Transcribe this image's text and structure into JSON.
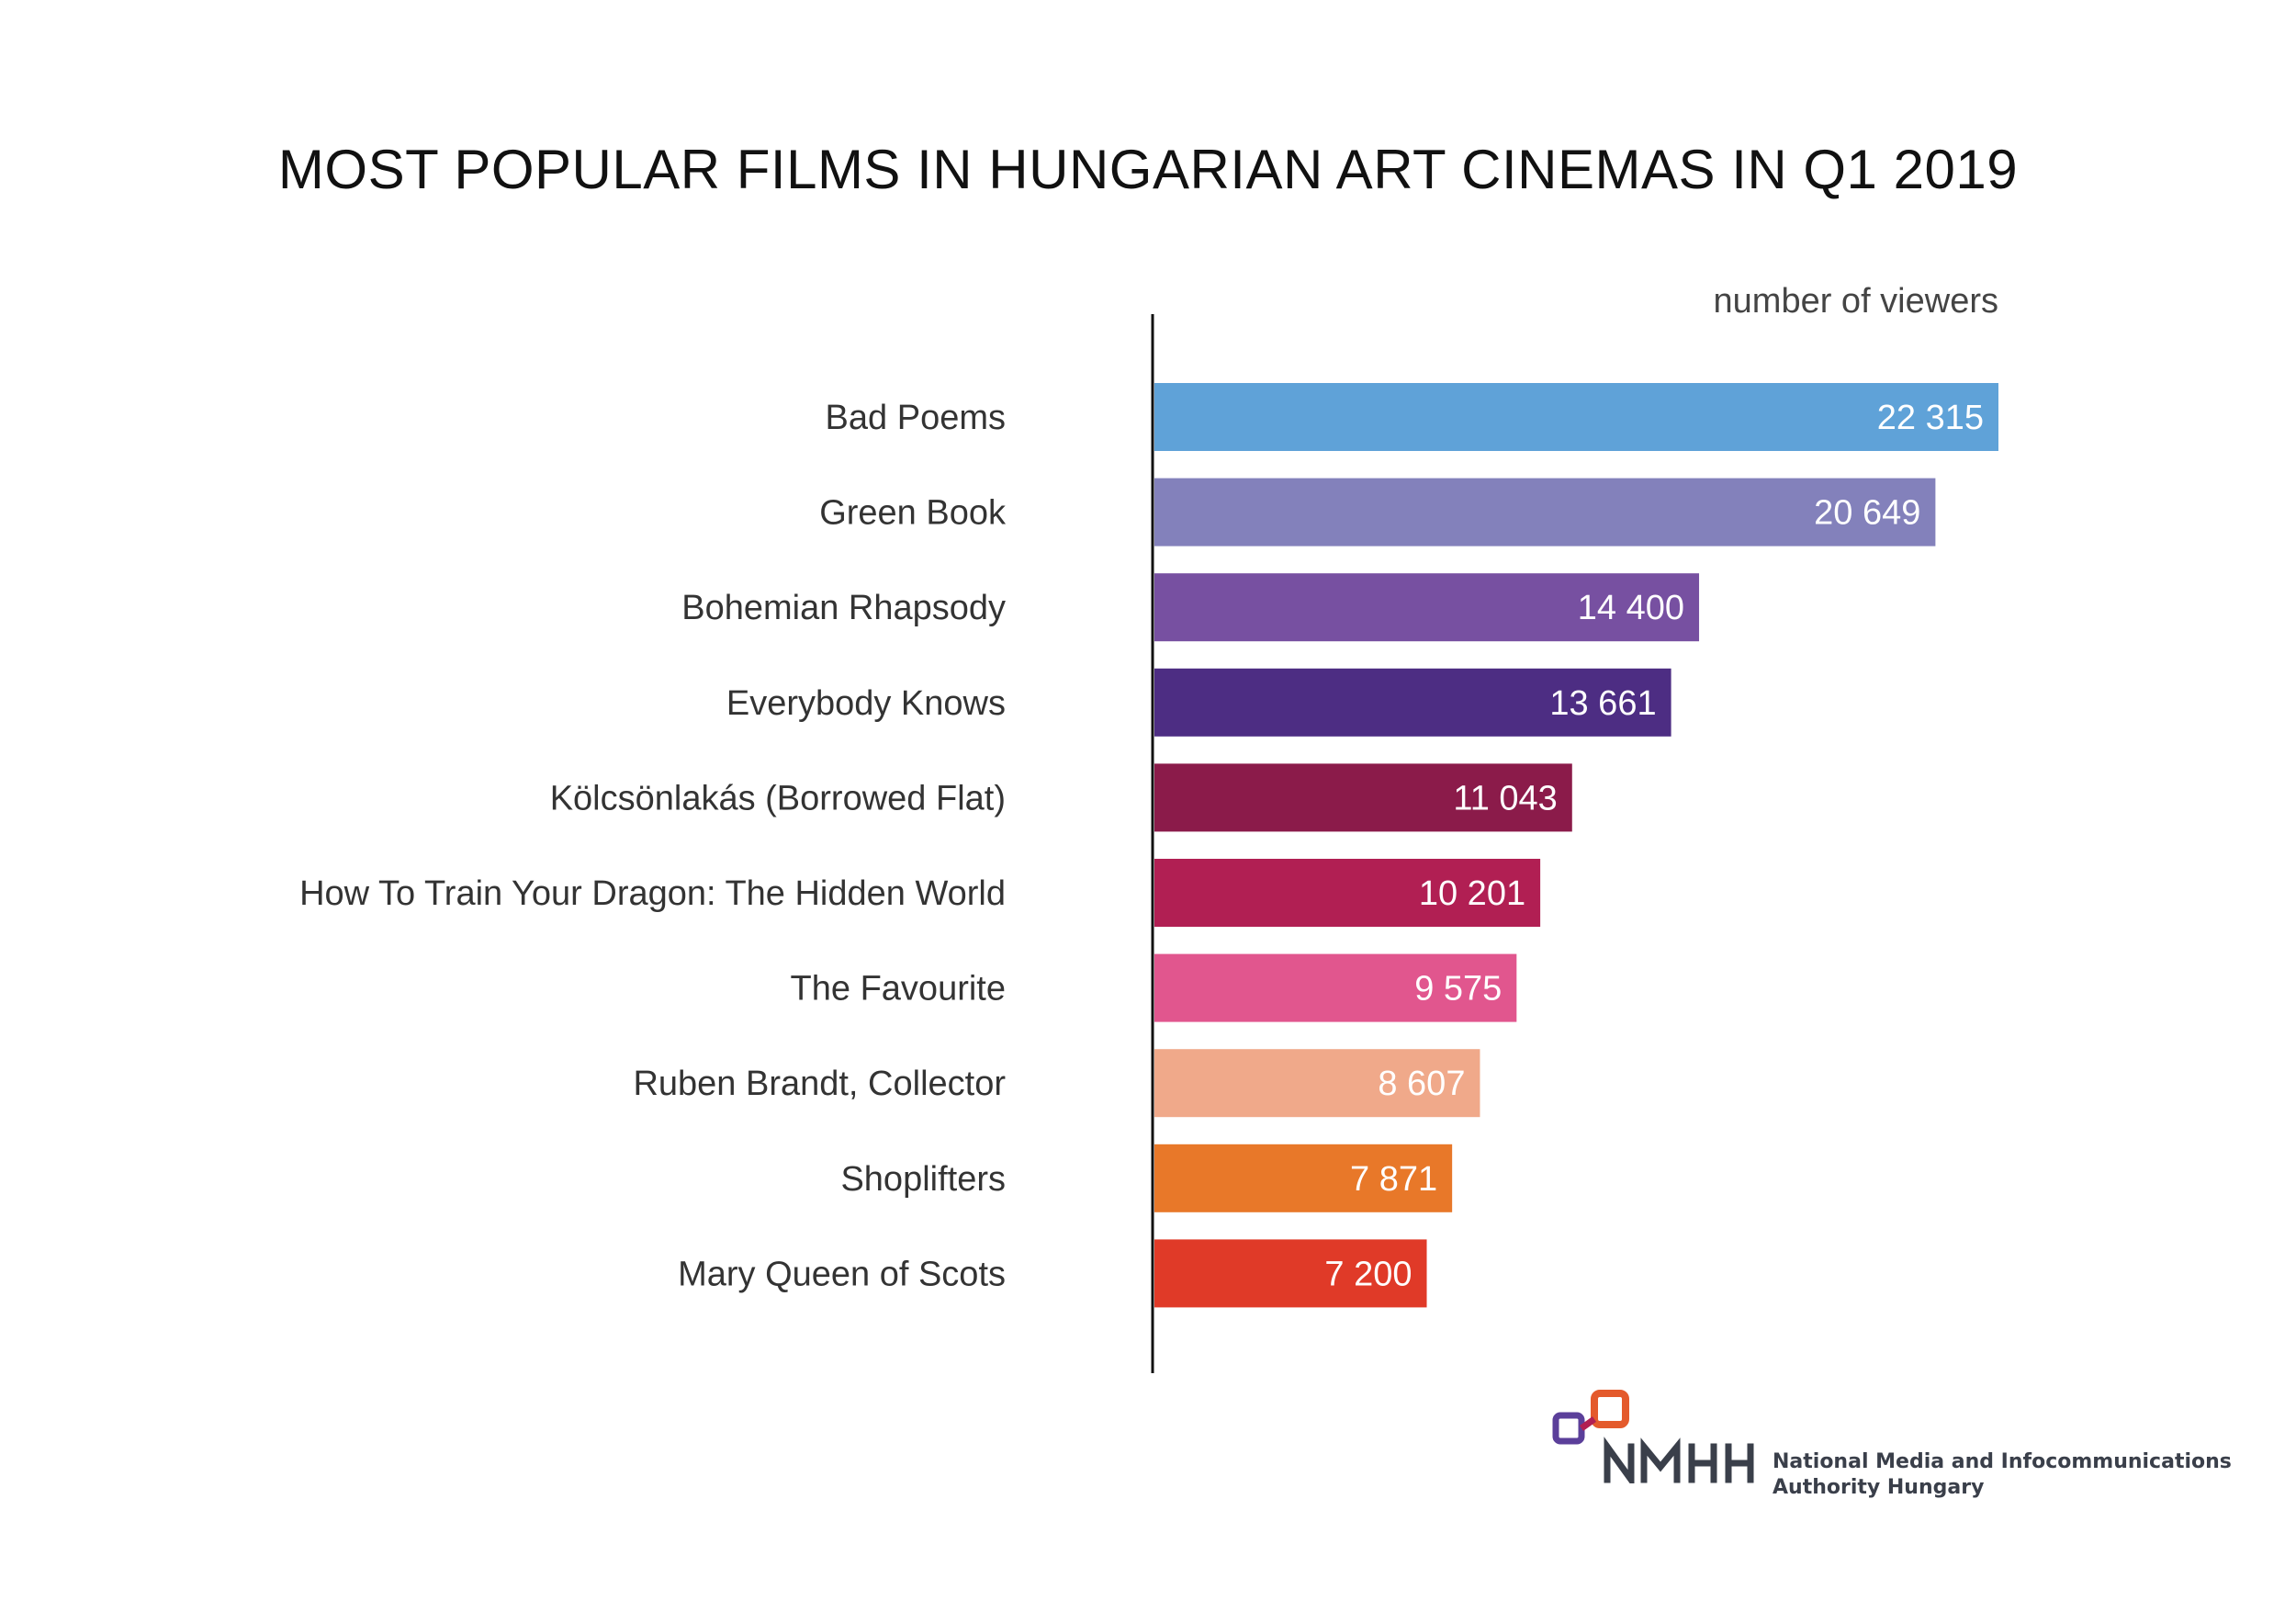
{
  "chart_data": {
    "type": "bar",
    "orientation": "horizontal",
    "title": "MOST POPULAR FILMS IN HUNGARIAN ART CINEMAS IN Q1 2019",
    "xlabel": "number of viewers",
    "categories": [
      "Bad Poems",
      "Green Book",
      "Bohemian Rhapsody",
      "Everybody Knows",
      "Kölcsönlakás (Borrowed Flat)",
      "How To Train Your Dragon: The Hidden World",
      "The Favourite",
      "Ruben Brandt, Collector",
      "Shoplifters",
      "Mary Queen of Scots"
    ],
    "values": [
      22315,
      20649,
      14400,
      13661,
      11043,
      10201,
      9575,
      8607,
      7871,
      7200
    ],
    "value_labels": [
      "22 315",
      "20 649",
      "14 400",
      "13 661",
      "11 043",
      "10 201",
      "9 575",
      "8 607",
      "7 871",
      "7 200"
    ],
    "colors": [
      "#5fa2d8",
      "#8381bb",
      "#7750a1",
      "#4d2d83",
      "#8b1b4a",
      "#b11f53",
      "#e1568e",
      "#f0a98a",
      "#e87829",
      "#e03a28"
    ],
    "xlim": [
      0,
      22315
    ],
    "grid": false,
    "legend": "none"
  },
  "footer": {
    "logo_text": "NMHH",
    "org_line1": "National Media and Infocommunications",
    "org_line2": "Authority   Hungary"
  }
}
